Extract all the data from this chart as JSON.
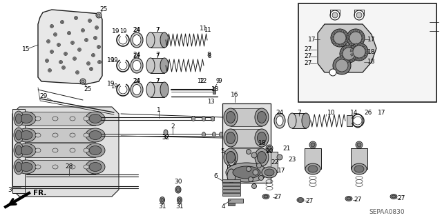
{
  "bg_color": "#ffffff",
  "dc": "#1a1a1a",
  "lc": "#333333",
  "lbc": "#000000",
  "watermark": "SEPAA0830",
  "fig_width": 6.4,
  "fig_height": 3.19,
  "dpi": 100,
  "gray1": "#c8c8c8",
  "gray2": "#a0a0a0",
  "gray3": "#787878",
  "gray4": "#e0e0e0",
  "gray5": "#d0d0d0"
}
